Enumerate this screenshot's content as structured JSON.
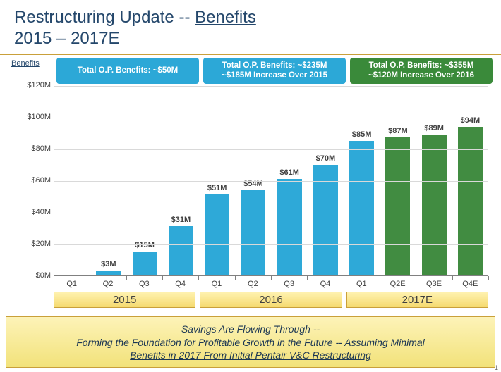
{
  "title": {
    "line1a": "Restructuring Update -- ",
    "line1b": "Benefits",
    "line2": "2015 – 2017E",
    "color": "#24476b",
    "underline_rule_color": "#c9a03a"
  },
  "y_axis_label": "Benefits",
  "header_labels": [
    {
      "lines": [
        "Total O.P. Benefits: ~$50M"
      ],
      "bg": "#2ca8d7"
    },
    {
      "lines": [
        "Total O.P. Benefits: ~$235M",
        "~$185M Increase Over 2015"
      ],
      "bg": "#2ca8d7"
    },
    {
      "lines": [
        "Total O.P. Benefits: ~$355M",
        "~$120M Increase Over 2016"
      ],
      "bg": "#3a8a3a"
    }
  ],
  "chart": {
    "type": "bar",
    "ylim": [
      0,
      120
    ],
    "ytick_step": 20,
    "yticks": [
      "$0M",
      "$20M",
      "$40M",
      "$60M",
      "$80M",
      "$100M",
      "$120M"
    ],
    "grid_color": "#d9d9d9",
    "axis_color": "#808080",
    "background_color": "#ffffff",
    "bar_width": 0.68,
    "categories": [
      "Q1",
      "Q2",
      "Q3",
      "Q4",
      "Q1",
      "Q2",
      "Q3",
      "Q4",
      "Q1",
      "Q2E",
      "Q3E",
      "Q4E"
    ],
    "values": [
      0,
      3,
      15,
      31,
      51,
      54,
      61,
      70,
      85,
      87,
      89,
      94
    ],
    "value_labels": [
      "",
      "$3M",
      "$15M",
      "$31M",
      "$51M",
      "$54M",
      "$61M",
      "$70M",
      "$85M",
      "$87M",
      "$89M",
      "$94M"
    ],
    "bar_colors": [
      "#2ea9d8",
      "#2ea9d8",
      "#2ea9d8",
      "#2ea9d8",
      "#2ea9d8",
      "#2ea9d8",
      "#2ea9d8",
      "#2ea9d8",
      "#2ea9d8",
      "#418c41",
      "#418c41",
      "#418c41"
    ],
    "label_fontsize": 11,
    "title_fontsize": 24
  },
  "year_groups": [
    "2015",
    "2016",
    "2017E"
  ],
  "footer": {
    "line1": "Savings Are Flowing Through --",
    "line2a": "Forming the Foundation for Profitable Growth in the Future -- ",
    "line2b": "Assuming Minimal",
    "line3": "Benefits in 2017 From Initial Pentair V&C Restructuring"
  },
  "page_number": "1"
}
